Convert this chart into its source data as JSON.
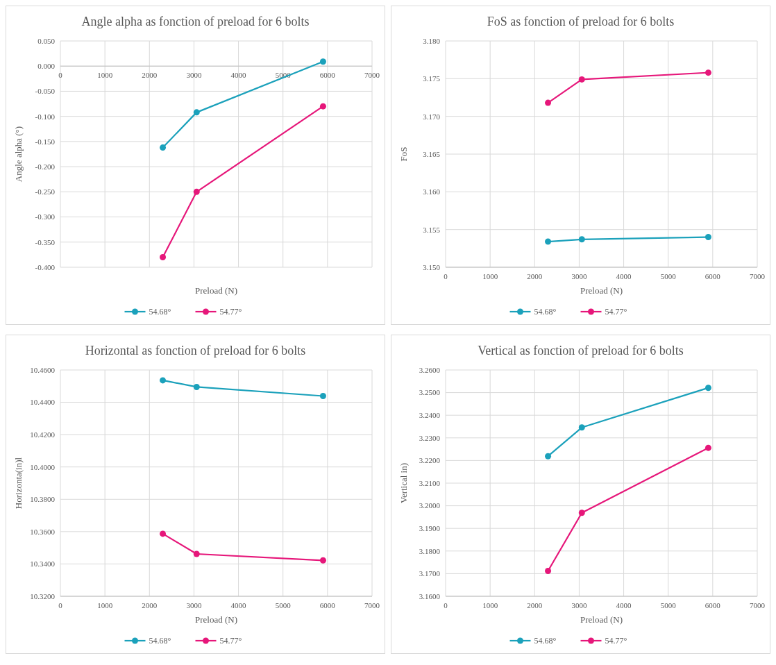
{
  "chart_data": [
    {
      "type": "line",
      "title": "Angle alpha as fonction of preload for 6 bolts",
      "xlabel": "Preload (N)",
      "ylabel": "Angle alpha (°)",
      "x": [
        2300,
        3060,
        5900
      ],
      "series": [
        {
          "name": "54.68°",
          "color": "#1ba1bb",
          "values": [
            -0.162,
            -0.092,
            0.009
          ]
        },
        {
          "name": "54.77°",
          "color": "#e6177a",
          "values": [
            -0.38,
            -0.25,
            -0.08
          ]
        }
      ],
      "xlim": [
        0,
        7000
      ],
      "xticks": [
        0,
        1000,
        2000,
        3000,
        4000,
        5000,
        6000,
        7000
      ],
      "ylim": [
        -0.4,
        0.05
      ],
      "yticks": [
        {
          "value": -0.4,
          "label": "-0.400"
        },
        {
          "value": -0.35,
          "label": "-0.350"
        },
        {
          "value": -0.3,
          "label": "-0.300"
        },
        {
          "value": -0.25,
          "label": "-0.250"
        },
        {
          "value": -0.2,
          "label": "-0.200"
        },
        {
          "value": -0.15,
          "label": "-0.150"
        },
        {
          "value": -0.1,
          "label": "-0.100"
        },
        {
          "value": -0.05,
          "label": "-0.050"
        },
        {
          "value": 0,
          "label": "0.000"
        },
        {
          "value": 0.05,
          "label": "0.050"
        }
      ],
      "grid": true,
      "legend": "bottom",
      "marker": "circle",
      "line_style": "solid"
    },
    {
      "type": "line",
      "title": "FoS as fonction of preload for 6 bolts",
      "xlabel": "Preload (N)",
      "ylabel": "FoS",
      "x": [
        2300,
        3060,
        5900
      ],
      "series": [
        {
          "name": "54.68°",
          "color": "#1ba1bb",
          "values": [
            3.1534,
            3.1537,
            3.154
          ]
        },
        {
          "name": "54.77°",
          "color": "#e6177a",
          "values": [
            3.1718,
            3.1749,
            3.1758
          ]
        }
      ],
      "xlim": [
        0,
        7000
      ],
      "xticks": [
        0,
        1000,
        2000,
        3000,
        4000,
        5000,
        6000,
        7000
      ],
      "ylim": [
        3.15,
        3.18
      ],
      "yticks": [
        {
          "value": 3.15,
          "label": "3.150"
        },
        3.155,
        {
          "value": 3.16,
          "label": "3.160"
        },
        3.165,
        {
          "value": 3.17,
          "label": "3.170"
        },
        3.175,
        {
          "value": 3.18,
          "label": "3.180"
        }
      ],
      "grid": true,
      "legend": "bottom",
      "marker": "circle",
      "line_style": "solid"
    },
    {
      "type": "line",
      "title": "Horizontal as fonction of preload for 6 bolts",
      "xlabel": "Preload (N)",
      "ylabel": "Horizonta(in)l",
      "x": [
        2300,
        3060,
        5900
      ],
      "series": [
        {
          "name": "54.68°",
          "color": "#1ba1bb",
          "values": [
            10.4536,
            10.4495,
            10.4439
          ]
        },
        {
          "name": "54.77°",
          "color": "#e6177a",
          "values": [
            10.3587,
            10.3462,
            10.3422
          ]
        }
      ],
      "xlim": [
        0,
        7000
      ],
      "xticks": [
        0,
        1000,
        2000,
        3000,
        4000,
        5000,
        6000,
        7000
      ],
      "ylim": [
        10.32,
        10.46
      ],
      "yticks": [
        {
          "value": 10.32,
          "label": "10.3200"
        },
        {
          "value": 10.34,
          "label": "10.3400"
        },
        {
          "value": 10.36,
          "label": "10.3600"
        },
        {
          "value": 10.38,
          "label": "10.3800"
        },
        {
          "value": 10.4,
          "label": "10.4000"
        },
        {
          "value": 10.42,
          "label": "10.4200"
        },
        {
          "value": 10.44,
          "label": "10.4400"
        },
        {
          "value": 10.46,
          "label": "10.4600"
        }
      ],
      "grid": true,
      "legend": "bottom",
      "marker": "circle",
      "line_style": "solid"
    },
    {
      "type": "line",
      "title": "Vertical as fonction of preload for 6 bolts",
      "xlabel": "Preload (N)",
      "ylabel": "Vertical in)",
      "x": [
        2300,
        3060,
        5900
      ],
      "series": [
        {
          "name": "54.68°",
          "color": "#1ba1bb",
          "values": [
            3.2219,
            3.2346,
            3.2521
          ]
        },
        {
          "name": "54.77°",
          "color": "#e6177a",
          "values": [
            3.1712,
            3.1969,
            3.2256
          ]
        }
      ],
      "xlim": [
        0,
        7000
      ],
      "xticks": [
        0,
        1000,
        2000,
        3000,
        4000,
        5000,
        6000,
        7000
      ],
      "ylim": [
        3.16,
        3.26
      ],
      "yticks": [
        {
          "value": 3.16,
          "label": "3.1600"
        },
        {
          "value": 3.17,
          "label": "3.1700"
        },
        {
          "value": 3.18,
          "label": "3.1800"
        },
        {
          "value": 3.19,
          "label": "3.1900"
        },
        {
          "value": 3.2,
          "label": "3.2000"
        },
        {
          "value": 3.21,
          "label": "3.2100"
        },
        {
          "value": 3.22,
          "label": "3.2200"
        },
        {
          "value": 3.23,
          "label": "3.2300"
        },
        {
          "value": 3.24,
          "label": "3.2400"
        },
        {
          "value": 3.25,
          "label": "3.2500"
        },
        {
          "value": 3.26,
          "label": "3.2600"
        }
      ],
      "grid": true,
      "legend": "bottom",
      "marker": "circle",
      "line_style": "solid"
    }
  ]
}
